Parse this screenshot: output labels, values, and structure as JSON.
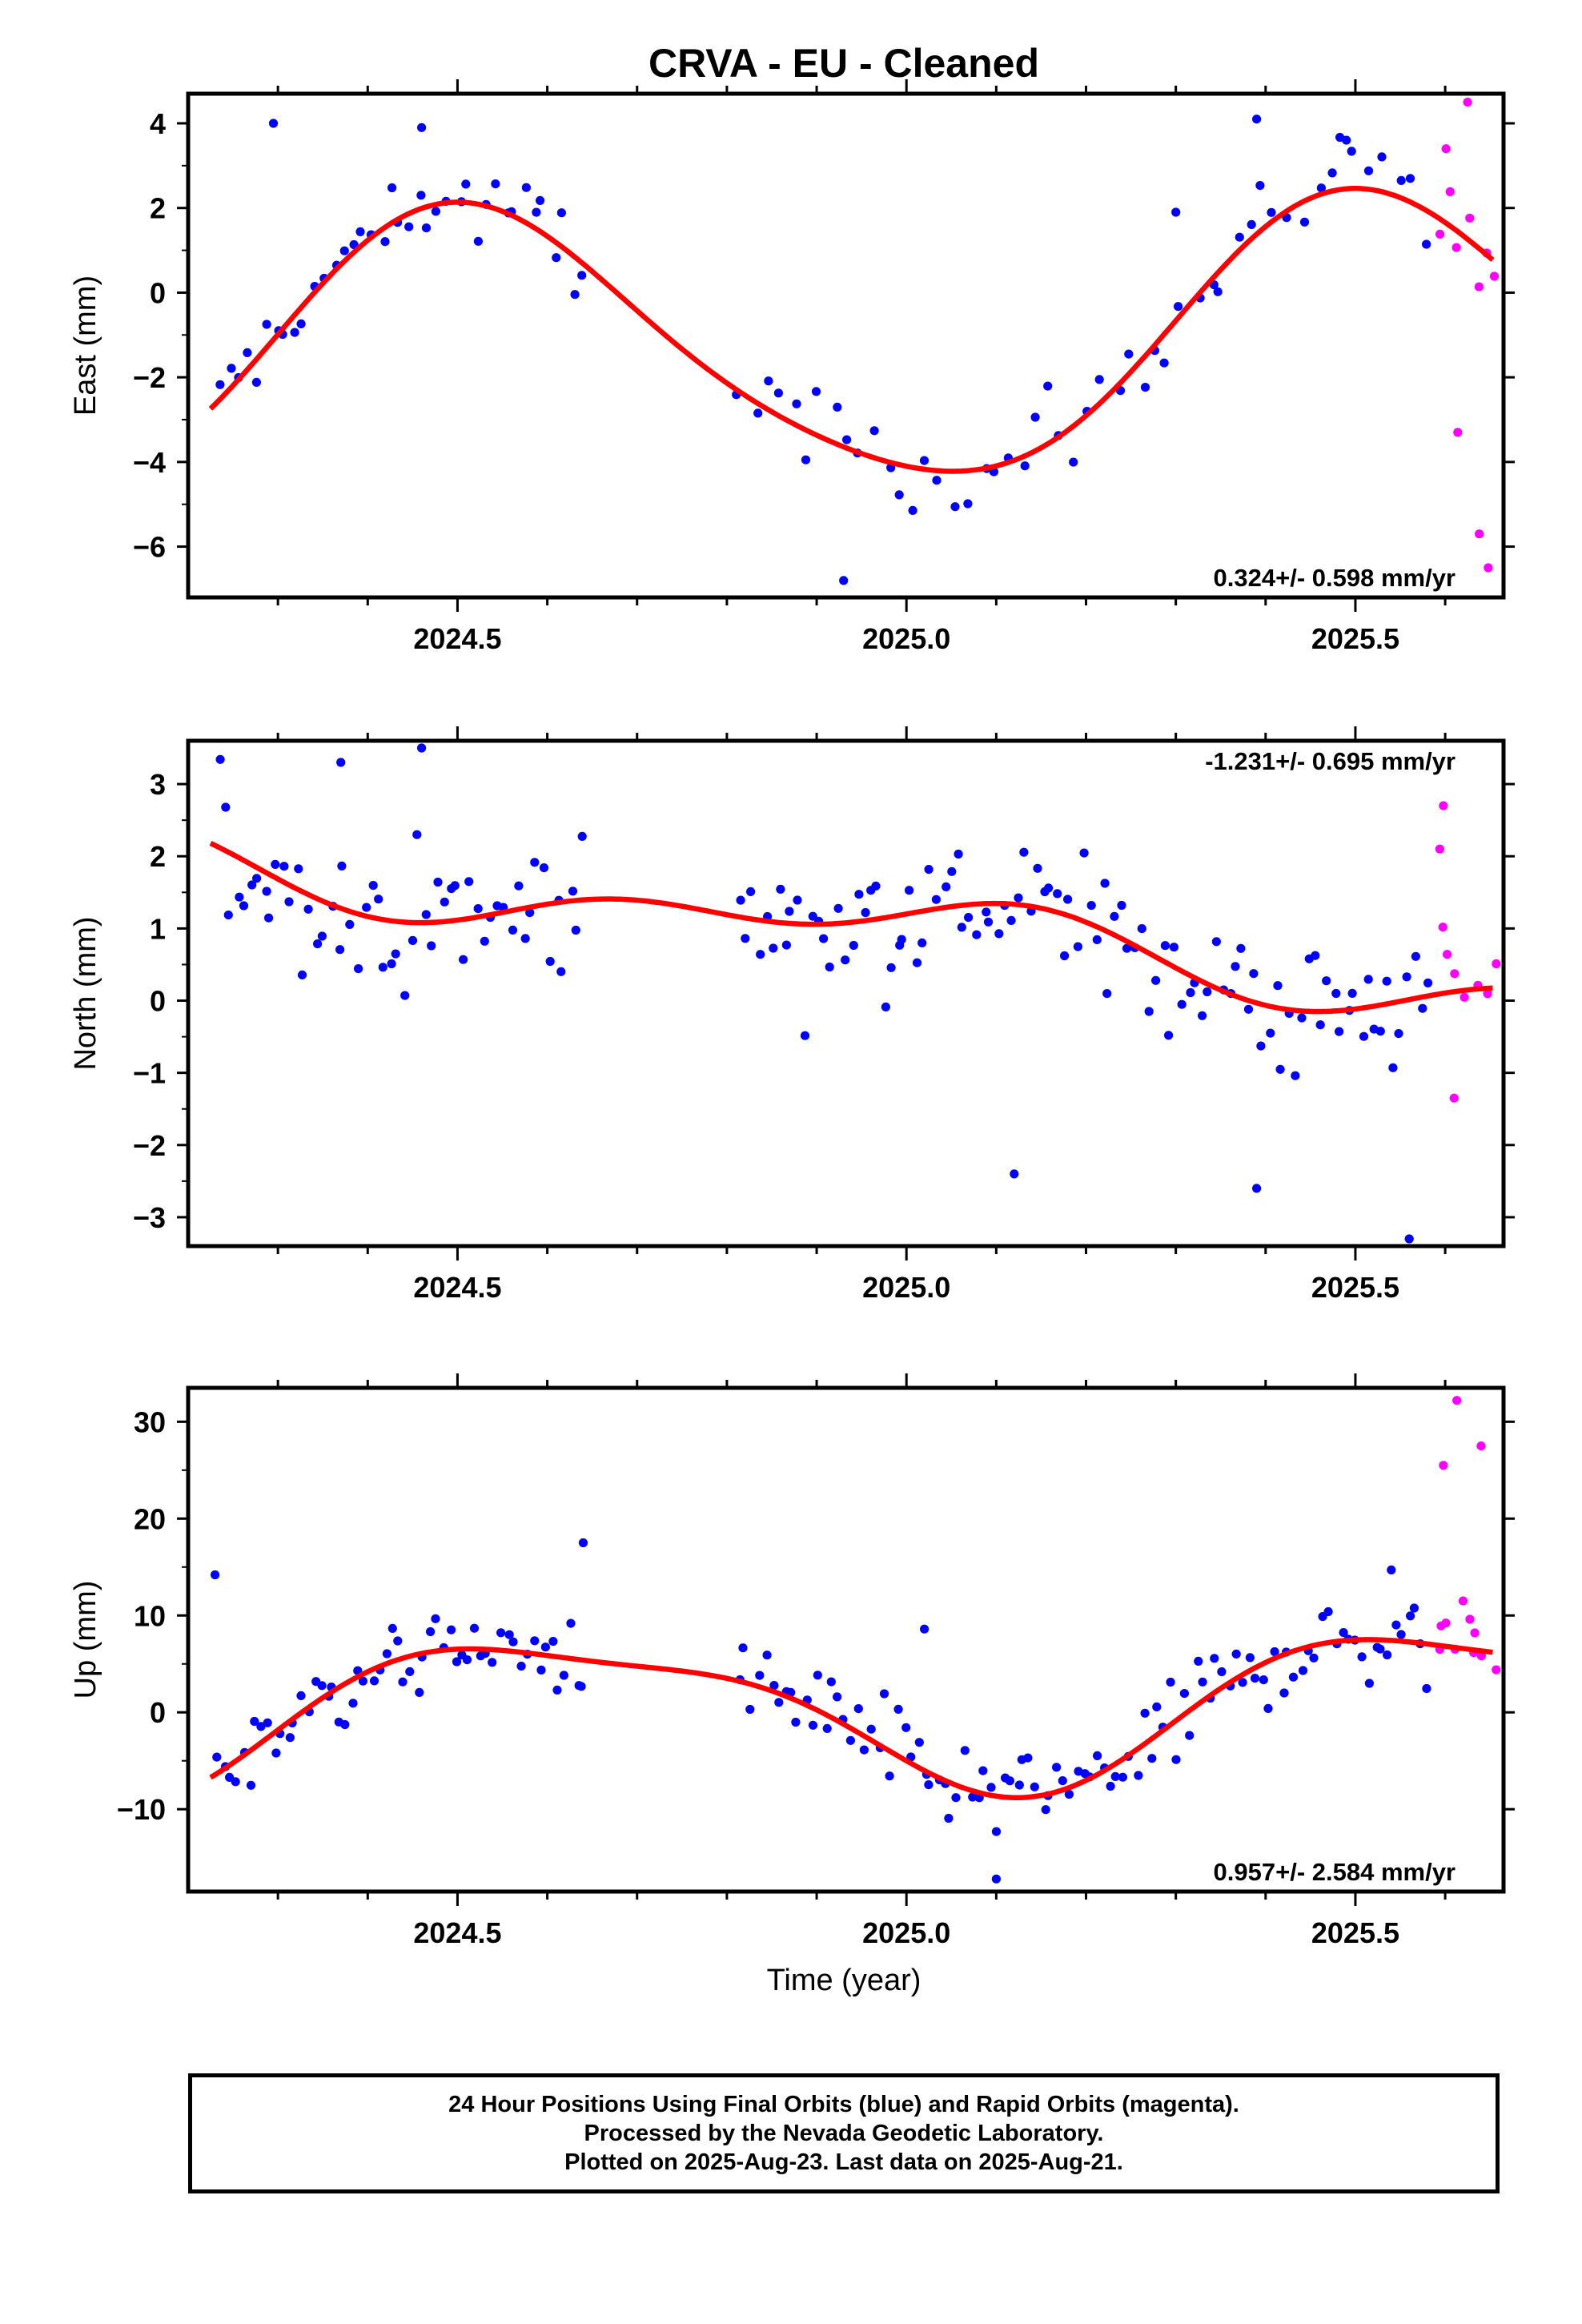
{
  "colors": {
    "final": "#0000ff",
    "rapid": "#ff00ff",
    "model": "#ff0000"
  },
  "footer": {
    "line1": "24 Hour Positions Using Final Orbits (blue) and Rapid Orbits (magenta).",
    "line2": "Processed by the Nevada Geodetic Laboratory.",
    "line3": "Plotted on 2025-Aug-23. Last data on 2025-Aug-21."
  },
  "chart_data": [
    {
      "type": "scatter",
      "title": "CRVA  - EU - Cleaned",
      "ylabel": "East (mm)",
      "xlabel": "",
      "xlim": [
        2024.2,
        2025.665
      ],
      "ylim": [
        -7.2,
        4.7
      ],
      "xticks": [
        2024.5,
        2025.0,
        2025.5
      ],
      "yticks": [
        -6,
        -4,
        -2,
        0,
        2,
        4
      ],
      "rate_label": "0.324+/- 0.598 mm/yr",
      "rate_position": "bottom-right",
      "model": {
        "offset": -1.25,
        "trend": 0.324,
        "annual": [
          -0.35,
          -3.2
        ],
        "semiannual": [
          -0.2,
          0.35
        ]
      },
      "series": [
        {
          "name": "Final Orbits",
          "color": "#0000ff",
          "segments": [
            [
              2024.23,
              2024.645,
              1.8,
              1.0
            ],
            [
              2024.81,
              2025.585,
              1.3,
              1.1
            ]
          ],
          "extras": [
            [
              2024.295,
              4.0
            ],
            [
              2024.46,
              3.9
            ],
            [
              2024.93,
              -6.8
            ],
            [
              2025.39,
              4.1
            ],
            [
              2025.49,
              3.6
            ],
            [
              2025.3,
              1.9
            ]
          ]
        },
        {
          "name": "Rapid Orbits",
          "color": "#ff00ff",
          "segments": [
            [
              2025.59,
              2025.66,
              2.0,
              1.0
            ]
          ],
          "extras": [
            [
              2025.625,
              4.5
            ],
            [
              2025.648,
              -6.5
            ],
            [
              2025.638,
              -5.7
            ],
            [
              2025.614,
              -3.3
            ],
            [
              2025.601,
              3.4
            ]
          ]
        }
      ]
    },
    {
      "type": "scatter",
      "ylabel": "North (mm)",
      "xlabel": "",
      "xlim": [
        2024.2,
        2025.665
      ],
      "ylim": [
        -3.4,
        3.6
      ],
      "xticks": [
        2024.5,
        2025.0,
        2025.5
      ],
      "yticks": [
        -3,
        -2,
        -1,
        0,
        1,
        2,
        3
      ],
      "rate_label": "-1.231+/- 0.695 mm/yr",
      "rate_position": "top-right",
      "model": {
        "offset": 0.95,
        "trend": -1.231,
        "annual": [
          0.05,
          0.35
        ],
        "semiannual": [
          0.25,
          -0.1
        ]
      },
      "series": [
        {
          "name": "Final Orbits",
          "color": "#0000ff",
          "segments": [
            [
              2024.23,
              2024.645,
              2.6,
              1.05
            ],
            [
              2024.81,
              2025.585,
              2.6,
              0.95
            ]
          ],
          "extras": [
            [
              2024.46,
              3.5
            ],
            [
              2024.37,
              3.3
            ],
            [
              2025.56,
              -3.3
            ],
            [
              2025.39,
              -2.6
            ],
            [
              2025.12,
              -2.4
            ]
          ]
        },
        {
          "name": "Rapid Orbits",
          "color": "#ff00ff",
          "segments": [
            [
              2025.59,
              2025.66,
              2.0,
              1.1
            ]
          ],
          "extras": [
            [
              2025.598,
              2.7
            ],
            [
              2025.61,
              -1.35
            ],
            [
              2025.594,
              2.1
            ]
          ]
        }
      ]
    },
    {
      "type": "scatter",
      "ylabel": "Up (mm)",
      "xlabel": "Time (year)",
      "xlim": [
        2024.2,
        2025.665
      ],
      "ylim": [
        -18.5,
        33.5
      ],
      "xticks": [
        2024.5,
        2025.0,
        2025.5
      ],
      "yticks": [
        -10,
        0,
        10,
        20,
        30
      ],
      "rate_label": "0.957+/- 2.584 mm/yr",
      "rate_position": "bottom-right",
      "model": {
        "offset": 0.5,
        "trend": 0.957,
        "annual": [
          -4.5,
          -6.0
        ],
        "semiannual": [
          -2.0,
          0.5
        ]
      },
      "series": [
        {
          "name": "Final Orbits",
          "color": "#0000ff",
          "segments": [
            [
              2024.23,
              2024.645,
              2.7,
              4.2
            ],
            [
              2024.81,
              2025.585,
              2.6,
              4.5
            ]
          ],
          "extras": [
            [
              2024.23,
              14.2
            ],
            [
              2024.64,
              17.5
            ],
            [
              2025.1,
              -17.2
            ],
            [
              2025.02,
              8.6
            ],
            [
              2025.54,
              14.7
            ]
          ]
        },
        {
          "name": "Rapid Orbits",
          "color": "#ff00ff",
          "segments": [
            [
              2025.59,
              2025.66,
              2.0,
              4.5
            ]
          ],
          "extras": [
            [
              2025.613,
              32.2
            ],
            [
              2025.598,
              25.5
            ],
            [
              2025.64,
              27.5
            ],
            [
              2025.633,
              8.2
            ],
            [
              2025.594,
              6.5
            ],
            [
              2025.62,
              11.5
            ]
          ]
        }
      ]
    }
  ]
}
